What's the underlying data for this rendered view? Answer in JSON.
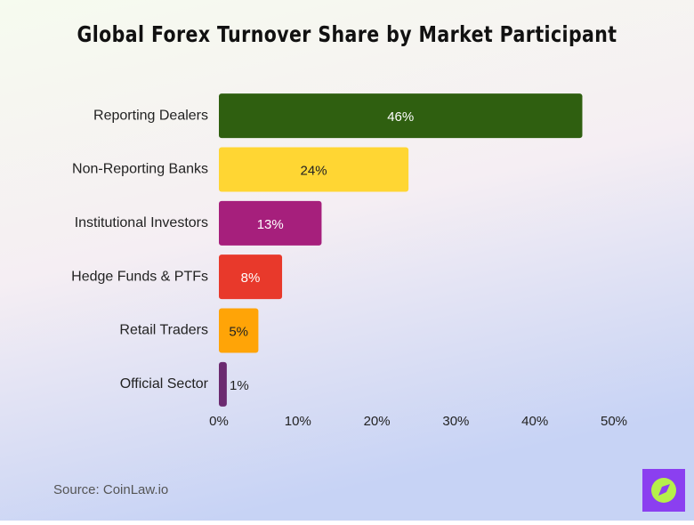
{
  "chart_data": {
    "type": "bar",
    "orientation": "horizontal",
    "title": "Global Forex Turnover Share by Market Participant",
    "categories": [
      "Reporting Dealers",
      "Non-Reporting Banks",
      "Institutional Investors",
      "Hedge Funds & PTFs",
      "Retail Traders",
      "Official Sector"
    ],
    "values": [
      46,
      24,
      13,
      8,
      5,
      1
    ],
    "value_labels": [
      "46%",
      "24%",
      "13%",
      "8%",
      "5%",
      "1%"
    ],
    "colors": [
      "#2f5f10",
      "#ffd633",
      "#a61f7c",
      "#e8392b",
      "#ffa407",
      "#6b2a70"
    ],
    "xlim": [
      0,
      50
    ],
    "xticks": [
      {
        "value": 0,
        "label": "0%"
      },
      {
        "value": 10,
        "label": "10%"
      },
      {
        "value": 20,
        "label": "20%"
      },
      {
        "value": 30,
        "label": "30%"
      },
      {
        "value": 40,
        "label": "40%"
      },
      {
        "value": 50,
        "label": "50%"
      }
    ],
    "source": "Source: CoinLaw.io"
  }
}
